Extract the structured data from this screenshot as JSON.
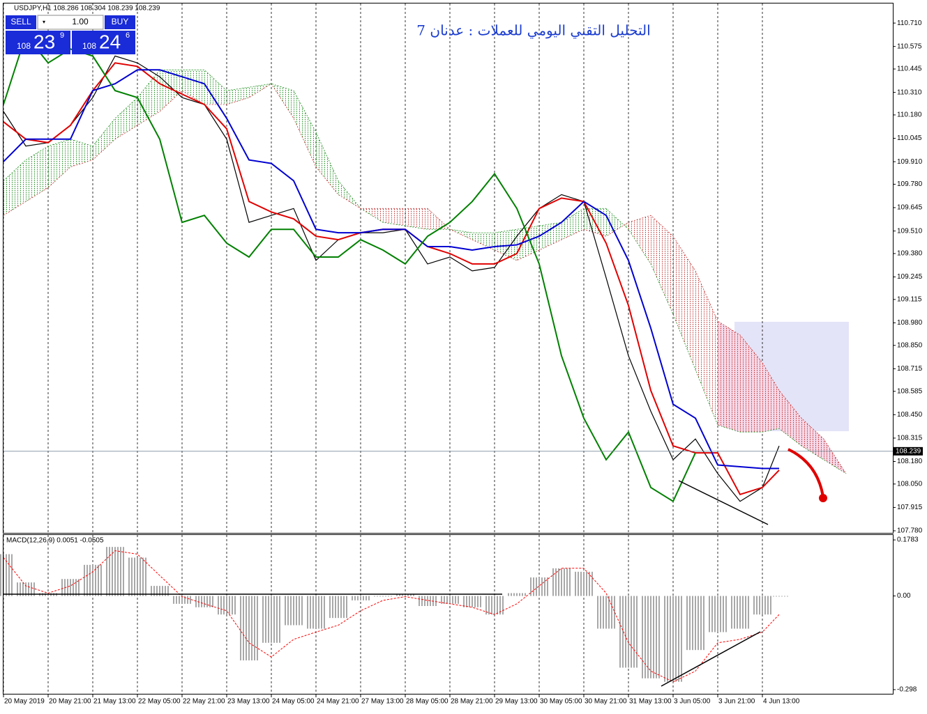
{
  "title": "التحليل التقني اليومي للعملات : عدنان 7",
  "trade_panel": {
    "sell": "SELL",
    "buy": "BUY",
    "lot": "1.00",
    "sell_big": "108",
    "sell_pips": "23",
    "sell_frac": "9",
    "buy_big": "108",
    "buy_pips": "24",
    "buy_frac": "6"
  },
  "chart_data": [
    {
      "type": "line",
      "title": "USDJPY,H1  108.286 108.304 108.239 108.239",
      "x": [
        0,
        8,
        16,
        24,
        32,
        40,
        48,
        56,
        64,
        72,
        80,
        88,
        96,
        104,
        112,
        120,
        128,
        136,
        144,
        152,
        160,
        168,
        176,
        184,
        192,
        200,
        208,
        216,
        224,
        232,
        240,
        248,
        256,
        264,
        272,
        278,
        286,
        294,
        302
      ],
      "xlim": [
        0,
        318.75
      ],
      "xticks": [
        {
          "value": 0,
          "label": "20 May 2019"
        },
        {
          "value": 16,
          "label": "20 May 21:00"
        },
        {
          "value": 32,
          "label": "21 May 13:00"
        },
        {
          "value": 48,
          "label": "22 May 05:00"
        },
        {
          "value": 64,
          "label": "22 May 21:00"
        },
        {
          "value": 80,
          "label": "23 May 13:00"
        },
        {
          "value": 96,
          "label": "24 May 05:00"
        },
        {
          "value": 112,
          "label": "24 May 21:00"
        },
        {
          "value": 128,
          "label": "27 May 13:00"
        },
        {
          "value": 144,
          "label": "28 May 05:00"
        },
        {
          "value": 160,
          "label": "28 May 21:00"
        },
        {
          "value": 176,
          "label": "29 May 13:00"
        },
        {
          "value": 192,
          "label": "30 May 05:00"
        },
        {
          "value": 208,
          "label": "30 May 21:00"
        },
        {
          "value": 224,
          "label": "31 May 13:00"
        },
        {
          "value": 240,
          "label": "3 Jun 05:00"
        },
        {
          "value": 256,
          "label": "3 Jun 21:00"
        },
        {
          "value": 272,
          "label": "4 Jun 13:00"
        }
      ],
      "ylim": [
        107.768,
        110.823
      ],
      "yticks": [
        {
          "value": 110.71,
          "label": "110.710"
        },
        110.575,
        110.445,
        {
          "value": 110.31,
          "label": "110.310"
        },
        {
          "value": 110.18,
          "label": "110.180"
        },
        110.045,
        {
          "value": 109.91,
          "label": "109.910"
        },
        {
          "value": 109.78,
          "label": "109.780"
        },
        109.645,
        {
          "value": 109.51,
          "label": "109.510"
        },
        {
          "value": 109.38,
          "label": "109.380"
        },
        109.245,
        109.115,
        {
          "value": 108.98,
          "label": "108.980"
        },
        {
          "value": 108.85,
          "label": "108.850"
        },
        108.715,
        108.585,
        {
          "value": 108.45,
          "label": "108.450"
        },
        108.315,
        {
          "value": 108.18,
          "label": "108.180"
        },
        {
          "value": 108.05,
          "label": "108.050"
        },
        107.915,
        {
          "value": 107.78,
          "label": "107.780"
        }
      ],
      "grid": true,
      "current_price": 108.239,
      "cloud": {
        "colors": [
          "#1f8f1f",
          "#c03030"
        ],
        "span_a": [
          109.8,
          109.92,
          110.0,
          110.04,
          110.0,
          110.16,
          110.28,
          110.44,
          110.44,
          110.44,
          110.32,
          110.34,
          110.36,
          110.32,
          110.08,
          109.8,
          109.64,
          109.56,
          109.54,
          109.52,
          109.52,
          109.5,
          109.5,
          109.52,
          109.54,
          109.56,
          109.64,
          109.64,
          109.52,
          109.32,
          109.03,
          108.71,
          108.39,
          108.35,
          108.35,
          108.37,
          108.27,
          108.19,
          108.11
        ],
        "span_b": [
          109.6,
          109.68,
          109.76,
          109.88,
          109.92,
          110.04,
          110.12,
          110.2,
          110.32,
          110.24,
          110.24,
          110.28,
          110.36,
          110.16,
          109.88,
          109.72,
          109.64,
          109.64,
          109.64,
          109.64,
          109.52,
          109.46,
          109.4,
          109.34,
          109.4,
          109.46,
          109.52,
          109.48,
          109.56,
          109.6,
          109.48,
          109.28,
          108.99,
          108.91,
          108.75,
          108.59,
          108.43,
          108.31,
          108.11
        ]
      },
      "series": [
        {
          "color": "#000000",
          "width": 1.2,
          "values": [
            110.2,
            110.0,
            110.02,
            110.12,
            110.28,
            110.52,
            110.48,
            110.4,
            110.28,
            110.24,
            110.04,
            109.56,
            109.6,
            109.64,
            109.34,
            109.46,
            109.5,
            109.5,
            109.52,
            109.32,
            109.36,
            109.28,
            109.3,
            109.48,
            109.64,
            109.72,
            109.68,
            109.24,
            108.79,
            108.47,
            108.19,
            108.31,
            108.11,
            107.95,
            108.03,
            108.27,
            null,
            null,
            null
          ]
        },
        {
          "color": "#e00000",
          "width": 2,
          "values": [
            110.14,
            110.04,
            110.02,
            110.12,
            110.32,
            110.48,
            110.46,
            110.36,
            110.3,
            110.24,
            110.1,
            109.68,
            109.62,
            109.58,
            109.48,
            109.46,
            109.5,
            109.52,
            109.52,
            109.42,
            109.38,
            109.32,
            109.32,
            109.38,
            109.64,
            109.7,
            109.68,
            109.44,
            109.08,
            108.59,
            108.27,
            108.23,
            108.23,
            107.99,
            108.03,
            108.13,
            null,
            null,
            null
          ]
        },
        {
          "color": "#0000d0",
          "width": 2,
          "values": [
            109.91,
            110.04,
            110.04,
            110.04,
            110.32,
            110.36,
            110.44,
            110.44,
            110.4,
            110.36,
            110.16,
            109.92,
            109.9,
            109.8,
            109.52,
            109.5,
            109.5,
            109.52,
            109.52,
            109.42,
            109.42,
            109.4,
            109.42,
            109.43,
            109.48,
            109.56,
            109.68,
            109.6,
            109.34,
            108.95,
            108.51,
            108.43,
            108.16,
            108.15,
            108.14,
            108.14,
            null,
            null,
            null
          ]
        },
        {
          "color": "#008000",
          "width": 2,
          "values": [
            110.24,
            110.64,
            110.48,
            110.56,
            110.52,
            110.32,
            110.28,
            110.04,
            109.56,
            109.6,
            109.44,
            109.36,
            109.52,
            109.52,
            109.36,
            109.36,
            109.46,
            109.4,
            109.32,
            109.48,
            109.56,
            109.68,
            109.84,
            109.64,
            109.32,
            108.79,
            108.43,
            108.19,
            108.35,
            108.03,
            107.95,
            108.23,
            null,
            null,
            null,
            null,
            null,
            null,
            null
          ]
        }
      ]
    },
    {
      "type": "macd",
      "title": "MACD(12,26,9) 0.0051 -0.0505",
      "x": [
        0,
        8,
        16,
        24,
        32,
        40,
        48,
        56,
        64,
        72,
        80,
        88,
        96,
        104,
        112,
        120,
        128,
        136,
        144,
        152,
        160,
        168,
        176,
        184,
        192,
        200,
        208,
        216,
        224,
        232,
        240,
        248,
        256,
        264,
        272,
        278
      ],
      "xlim": [
        0,
        318.75
      ],
      "ylim": [
        -0.309,
        0.194
      ],
      "yticks": [
        0.1783,
        {
          "value": 0,
          "label": "0.00"
        },
        -0.298
      ],
      "series": [
        {
          "color": "#a8a8a8",
          "values": [
            0.133,
            0.043,
            0.009,
            0.054,
            0.099,
            0.156,
            0.122,
            0.032,
            -0.025,
            -0.036,
            -0.059,
            -0.205,
            -0.149,
            -0.093,
            -0.104,
            -0.07,
            -0.014,
            -0.002,
            0.005,
            -0.032,
            -0.025,
            -0.036,
            -0.059,
            0.009,
            0.059,
            0.088,
            0.077,
            -0.104,
            -0.228,
            -0.262,
            -0.273,
            -0.172,
            -0.115,
            -0.104,
            -0.059,
            -0.002
          ]
        },
        {
          "color": "#ff0000",
          "values": [
            0.122,
            0.032,
            0.009,
            0.032,
            0.077,
            0.144,
            0.133,
            0.065,
            -0.002,
            -0.025,
            -0.047,
            -0.149,
            -0.194,
            -0.138,
            -0.115,
            -0.093,
            -0.047,
            -0.014,
            -0.002,
            -0.014,
            -0.025,
            -0.036,
            -0.059,
            -0.025,
            0.032,
            0.088,
            0.088,
            0.009,
            -0.149,
            -0.239,
            -0.273,
            -0.239,
            -0.149,
            -0.138,
            -0.115,
            -0.059
          ]
        }
      ]
    }
  ]
}
